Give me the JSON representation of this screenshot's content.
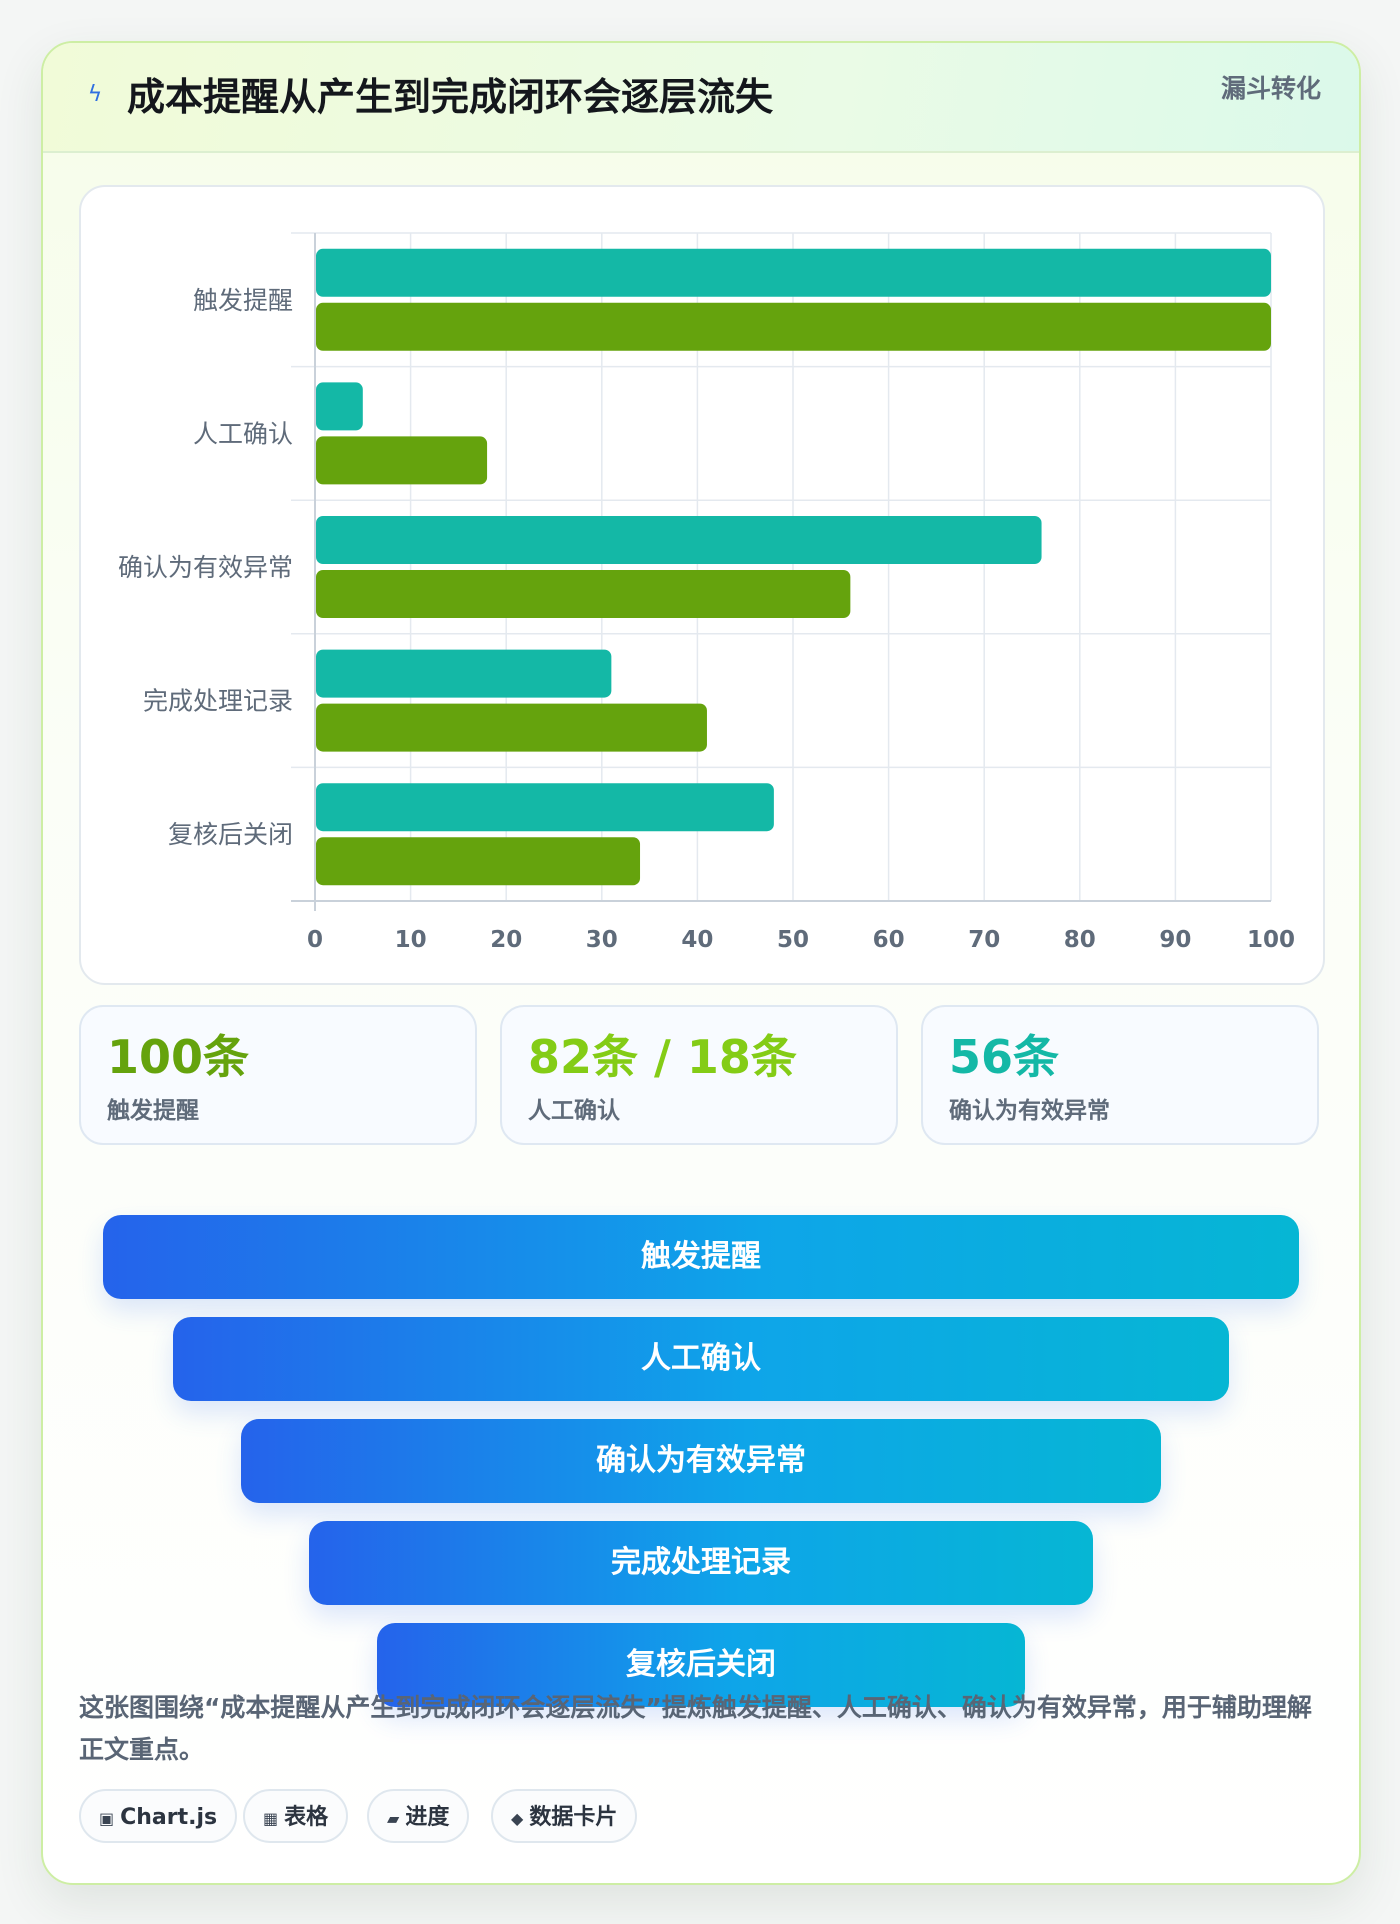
{
  "header": {
    "icon": "lightning-icon",
    "title": "成本提醒从产生到完成闭环会逐层流失",
    "tag": "漏斗转化"
  },
  "chart_data": {
    "type": "bar",
    "orientation": "horizontal",
    "categories": [
      "触发提醒",
      "人工确认",
      "确认为有效异常",
      "完成处理记录",
      "复核后关闭"
    ],
    "series": [
      {
        "color": "#14b8a6",
        "values": [
          100,
          5,
          76,
          31,
          48
        ]
      },
      {
        "color": "#65a30d",
        "values": [
          100,
          18,
          56,
          41,
          34
        ]
      }
    ],
    "xlim": [
      0,
      100
    ],
    "xticks": [
      0,
      10,
      20,
      30,
      40,
      50,
      60,
      70,
      80,
      90,
      100
    ],
    "grid": true
  },
  "stats": [
    {
      "value": "100条",
      "label": "触发提醒",
      "color": "#65a30d"
    },
    {
      "value": "82条 / 18条",
      "label": "人工确认",
      "color": "#84cc16"
    },
    {
      "value": "56条",
      "label": "确认为有效异常",
      "color": "#14b8a6"
    }
  ],
  "funnel": {
    "stages": [
      "触发提醒",
      "人工确认",
      "确认为有效异常",
      "完成处理记录",
      "复核后关闭"
    ]
  },
  "summary": "这张图围绕“成本提醒从产生到完成闭环会逐层流失”提炼触发提醒、人工确认、确认为有效异常，用于辅助理解正文重点。",
  "pills": [
    {
      "icon": "▣",
      "label": "Chart.js"
    },
    {
      "icon": "▦",
      "label": "表格"
    },
    {
      "icon": "▰",
      "label": "进度"
    },
    {
      "icon": "◆",
      "label": "数据卡片"
    }
  ]
}
